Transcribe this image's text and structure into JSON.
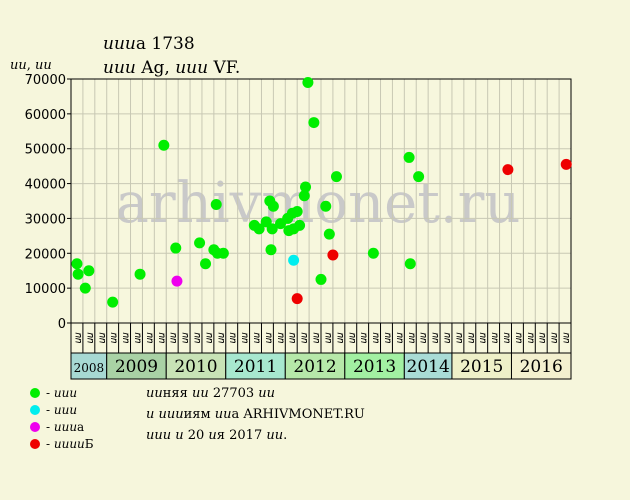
{
  "header": {
    "title": "𝑢𝑢𝑢а 1738",
    "subtitle": "𝑢𝑢𝑢 Ag, 𝑢𝑢𝑢 VF.",
    "ylabel": "𝑢𝑢, 𝑢𝑢"
  },
  "watermark": "arhivmonet.ru",
  "legend": [
    {
      "label": "- 𝑢𝑢𝑢",
      "color": "#00ee00"
    },
    {
      "label": "- 𝑢𝑢𝑢",
      "color": "#00eeee"
    },
    {
      "label": "- 𝑢𝑢𝑢а",
      "color": "#ee00ee"
    },
    {
      "label": "- 𝑢𝑢𝑢𝑢Б",
      "color": "#ee0000"
    }
  ],
  "footer": {
    "line1": "𝑢𝑢няя 𝑢𝑢 27703 𝑢𝑢",
    "line2": "𝑢 𝑢𝑢𝑢иям 𝑢𝑢а ARHIVMONET.RU",
    "line3": "𝑢𝑢𝑢 𝑢 20 𝑢я 2017 𝑢𝑢."
  },
  "chart_data": {
    "type": "scatter",
    "ylim": [
      0,
      70000
    ],
    "yticks": [
      0,
      10000,
      20000,
      30000,
      40000,
      50000,
      60000,
      70000
    ],
    "xlim": [
      0,
      42
    ],
    "grid": true,
    "half_year_labels": [
      "𝑢𝑢",
      "𝑢𝑢",
      "𝑢𝑢",
      "𝑢𝑢",
      "𝑢𝑢",
      "𝑢𝑢",
      "𝑢𝑢",
      "𝑢𝑢",
      "𝑢𝑢",
      "𝑢𝑢",
      "𝑢𝑢",
      "𝑢𝑢",
      "𝑢𝑢",
      "𝑢𝑢",
      "𝑢𝑢",
      "𝑢𝑢",
      "𝑢𝑢",
      "𝑢𝑢",
      "𝑢𝑢",
      "𝑢𝑢",
      "𝑢𝑢",
      "𝑢𝑢",
      "𝑢𝑢",
      "𝑢𝑢",
      "𝑢𝑢",
      "𝑢𝑢",
      "𝑢𝑢",
      "𝑢𝑢",
      "𝑢𝑢",
      "𝑢𝑢",
      "𝑢𝑢",
      "𝑢𝑢",
      "𝑢𝑢",
      "𝑢𝑢",
      "𝑢𝑢",
      "𝑢𝑢",
      "𝑢𝑢",
      "𝑢𝑢",
      "𝑢𝑢",
      "𝑢𝑢",
      "𝑢𝑢",
      "𝑢𝑢"
    ],
    "years": [
      {
        "label": "2008",
        "start": 0,
        "end": 3,
        "color": "#a7d9d3"
      },
      {
        "label": "2009",
        "start": 3,
        "end": 8,
        "color": "#a9d2a5"
      },
      {
        "label": "2010",
        "start": 8,
        "end": 13,
        "color": "#c8e3b6"
      },
      {
        "label": "2011",
        "start": 13,
        "end": 18,
        "color": "#a7e8cf"
      },
      {
        "label": "2012",
        "start": 18,
        "end": 23,
        "color": "#b6e8a9"
      },
      {
        "label": "2013",
        "start": 23,
        "end": 28,
        "color": "#a2f0a2"
      },
      {
        "label": "2014",
        "start": 28,
        "end": 32,
        "color": "#a9dcd6"
      },
      {
        "label": "2015",
        "start": 32,
        "end": 37,
        "color": "#eef0c8"
      },
      {
        "label": "2016",
        "start": 37,
        "end": 42,
        "color": "#f3f0cf"
      }
    ],
    "series": [
      {
        "name": "- 𝑢𝑢𝑢",
        "color": "#00ee00",
        "points": [
          [
            0.5,
            17000
          ],
          [
            0.6,
            14000
          ],
          [
            1.2,
            10000
          ],
          [
            1.5,
            15000
          ],
          [
            3.5,
            6000
          ],
          [
            5.8,
            14000
          ],
          [
            7.8,
            51000
          ],
          [
            8.8,
            21500
          ],
          [
            10.8,
            23000
          ],
          [
            11.3,
            17000
          ],
          [
            12.0,
            21000
          ],
          [
            12.2,
            34000
          ],
          [
            12.3,
            20000
          ],
          [
            12.8,
            20000
          ],
          [
            15.4,
            28000
          ],
          [
            15.8,
            27000
          ],
          [
            16.4,
            29000
          ],
          [
            16.7,
            35000
          ],
          [
            16.8,
            21000
          ],
          [
            16.9,
            27000
          ],
          [
            17.0,
            33500
          ],
          [
            17.6,
            28500
          ],
          [
            18.2,
            30000
          ],
          [
            18.3,
            26500
          ],
          [
            18.6,
            31500
          ],
          [
            18.7,
            27000
          ],
          [
            19.0,
            32000
          ],
          [
            19.2,
            28000
          ],
          [
            19.6,
            36500
          ],
          [
            19.7,
            39000
          ],
          [
            19.9,
            69000
          ],
          [
            20.4,
            57500
          ],
          [
            21.0,
            12500
          ],
          [
            21.4,
            33500
          ],
          [
            21.7,
            25500
          ],
          [
            22.3,
            42000
          ],
          [
            25.4,
            20000
          ],
          [
            28.4,
            47500
          ],
          [
            28.5,
            17000
          ],
          [
            29.2,
            42000
          ]
        ]
      },
      {
        "name": "- 𝑢𝑢𝑢",
        "color": "#00eeee",
        "points": [
          [
            18.7,
            18000
          ]
        ]
      },
      {
        "name": "- 𝑢𝑢𝑢а",
        "color": "#ee00ee",
        "points": [
          [
            8.9,
            12000
          ]
        ]
      },
      {
        "name": "- 𝑢𝑢𝑢𝑢Б",
        "color": "#ee0000",
        "points": [
          [
            19.0,
            7000
          ],
          [
            22.0,
            19500
          ],
          [
            36.7,
            44000
          ],
          [
            41.6,
            45500
          ]
        ]
      }
    ]
  }
}
